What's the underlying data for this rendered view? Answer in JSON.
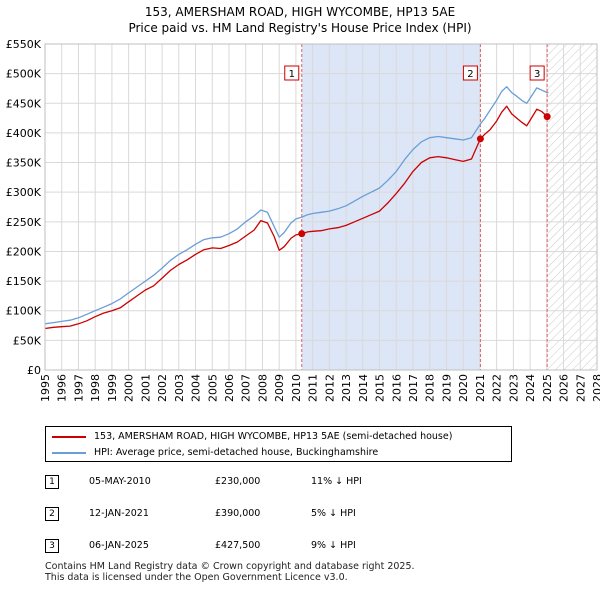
{
  "chart_data": {
    "type": "line",
    "title": "153, AMERSHAM ROAD, HIGH WYCOMBE, HP13 5AE",
    "subtitle": "Price paid vs. HM Land Registry's House Price Index (HPI)",
    "xlabel": "",
    "ylabel": "",
    "xlim": [
      1995,
      2028
    ],
    "ylim": [
      0,
      550000
    ],
    "y_ticks": [
      {
        "value": 0,
        "label": "£0"
      },
      {
        "value": 50000,
        "label": "£50K"
      },
      {
        "value": 100000,
        "label": "£100K"
      },
      {
        "value": 150000,
        "label": "£150K"
      },
      {
        "value": 200000,
        "label": "£200K"
      },
      {
        "value": 250000,
        "label": "£250K"
      },
      {
        "value": 300000,
        "label": "£300K"
      },
      {
        "value": 350000,
        "label": "£350K"
      },
      {
        "value": 400000,
        "label": "£400K"
      },
      {
        "value": 450000,
        "label": "£450K"
      },
      {
        "value": 500000,
        "label": "£500K"
      },
      {
        "value": 550000,
        "label": "£550K"
      }
    ],
    "x_ticks": [
      "1995",
      "1996",
      "1997",
      "1998",
      "1999",
      "2000",
      "2001",
      "2002",
      "2003",
      "2004",
      "2005",
      "2006",
      "2007",
      "2008",
      "2009",
      "2010",
      "2011",
      "2012",
      "2013",
      "2014",
      "2015",
      "2016",
      "2017",
      "2018",
      "2019",
      "2020",
      "2021",
      "2022",
      "2023",
      "2024",
      "2025",
      "2026",
      "2027",
      "2028"
    ],
    "grid": true,
    "shaded_region": {
      "from": 2010.35,
      "to": 2021.03,
      "color": "#dde6f7"
    },
    "hatched_region": {
      "from": 2025.05,
      "to": 2028
    },
    "series": [
      {
        "name": "153, AMERSHAM ROAD, HIGH WYCOMBE, HP13 5AE (semi-detached house)",
        "color": "#cc0000",
        "x": [
          1995.0,
          1995.5,
          1996.0,
          1996.5,
          1997.0,
          1997.5,
          1998.0,
          1998.5,
          1999.0,
          1999.5,
          2000.0,
          2000.5,
          2001.0,
          2001.5,
          2002.0,
          2002.5,
          2003.0,
          2003.5,
          2004.0,
          2004.5,
          2005.0,
          2005.5,
          2006.0,
          2006.5,
          2007.0,
          2007.5,
          2007.9,
          2008.3,
          2008.7,
          2009.0,
          2009.3,
          2009.7,
          2010.0,
          2010.35,
          2010.7,
          2011.0,
          2011.5,
          2012.0,
          2012.5,
          2013.0,
          2013.5,
          2014.0,
          2014.5,
          2015.0,
          2015.5,
          2016.0,
          2016.5,
          2017.0,
          2017.5,
          2018.0,
          2018.5,
          2019.0,
          2019.5,
          2020.0,
          2020.5,
          2021.03,
          2021.3,
          2021.6,
          2022.0,
          2022.3,
          2022.6,
          2022.9,
          2023.2,
          2023.5,
          2023.8,
          2024.1,
          2024.4,
          2024.7,
          2025.02,
          2025.1
        ],
        "values": [
          70000,
          72000,
          73000,
          74000,
          78000,
          83000,
          90000,
          96000,
          100000,
          105000,
          115000,
          125000,
          135000,
          142000,
          155000,
          168000,
          178000,
          186000,
          195000,
          203000,
          206000,
          205000,
          210000,
          216000,
          226000,
          236000,
          252000,
          248000,
          225000,
          202000,
          208000,
          222000,
          228000,
          230000,
          233000,
          234000,
          235000,
          238000,
          240000,
          244000,
          250000,
          256000,
          262000,
          268000,
          282000,
          298000,
          315000,
          335000,
          350000,
          358000,
          360000,
          358000,
          355000,
          352000,
          356000,
          390000,
          398000,
          405000,
          420000,
          435000,
          445000,
          432000,
          425000,
          418000,
          412000,
          426000,
          440000,
          436000,
          427500,
          424000
        ]
      },
      {
        "name": "HPI: Average price, semi-detached house, Buckinghamshire",
        "color": "#6a9ed6",
        "x": [
          1995.0,
          1995.5,
          1996.0,
          1996.5,
          1997.0,
          1997.5,
          1998.0,
          1998.5,
          1999.0,
          1999.5,
          2000.0,
          2000.5,
          2001.0,
          2001.5,
          2002.0,
          2002.5,
          2003.0,
          2003.5,
          2004.0,
          2004.5,
          2005.0,
          2005.5,
          2006.0,
          2006.5,
          2007.0,
          2007.5,
          2007.9,
          2008.3,
          2008.7,
          2009.0,
          2009.3,
          2009.7,
          2010.0,
          2010.35,
          2010.7,
          2011.0,
          2011.5,
          2012.0,
          2012.5,
          2013.0,
          2013.5,
          2014.0,
          2014.5,
          2015.0,
          2015.5,
          2016.0,
          2016.5,
          2017.0,
          2017.5,
          2018.0,
          2018.5,
          2019.0,
          2019.5,
          2020.0,
          2020.5,
          2021.03,
          2021.3,
          2021.6,
          2022.0,
          2022.3,
          2022.6,
          2022.9,
          2023.2,
          2023.5,
          2023.8,
          2024.1,
          2024.4,
          2024.7,
          2025.02,
          2025.1
        ],
        "values": [
          78000,
          80000,
          82000,
          84000,
          88000,
          94000,
          100000,
          106000,
          112000,
          120000,
          130000,
          140000,
          150000,
          160000,
          172000,
          185000,
          195000,
          203000,
          212000,
          220000,
          223000,
          224000,
          230000,
          238000,
          250000,
          260000,
          270000,
          266000,
          242000,
          224000,
          232000,
          248000,
          255000,
          258000,
          262000,
          264000,
          266000,
          268000,
          272000,
          277000,
          285000,
          293000,
          300000,
          307000,
          320000,
          335000,
          355000,
          372000,
          385000,
          392000,
          394000,
          392000,
          390000,
          388000,
          392000,
          415000,
          425000,
          438000,
          455000,
          470000,
          478000,
          468000,
          462000,
          455000,
          450000,
          463000,
          476000,
          472000,
          468000,
          468000
        ]
      }
    ],
    "sales": [
      {
        "label": "1",
        "x": 2010.35,
        "value": 230000
      },
      {
        "label": "2",
        "x": 2021.03,
        "value": 390000
      },
      {
        "label": "3",
        "x": 2025.02,
        "value": 427500
      }
    ]
  },
  "legend": {
    "items": [
      {
        "label": "153, AMERSHAM ROAD, HIGH WYCOMBE, HP13 5AE (semi-detached house)",
        "color": "#cc0000"
      },
      {
        "label": "HPI: Average price, semi-detached house, Buckinghamshire",
        "color": "#6a9ed6"
      }
    ]
  },
  "transactions": [
    {
      "num": "1",
      "date": "05-MAY-2010",
      "price": "£230,000",
      "hpi": "11% ↓ HPI"
    },
    {
      "num": "2",
      "date": "12-JAN-2021",
      "price": "£390,000",
      "hpi": "5% ↓ HPI"
    },
    {
      "num": "3",
      "date": "06-JAN-2025",
      "price": "£427,500",
      "hpi": "9% ↓ HPI"
    }
  ],
  "footer": {
    "line1": "Contains HM Land Registry data © Crown copyright and database right 2025.",
    "line2": "This data is licensed under the Open Government Licence v3.0."
  }
}
